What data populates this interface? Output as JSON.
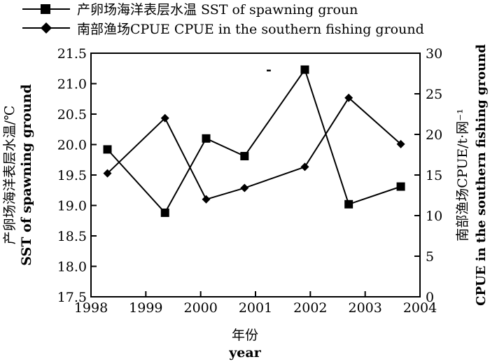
{
  "chart_data": {
    "type": "line",
    "x": [
      1998.3,
      1999.35,
      2000.1,
      2000.8,
      2001.9,
      2002.7,
      2003.65
    ],
    "xlim": [
      1998,
      2004
    ],
    "xticks": [
      "1998",
      "1999",
      "2000",
      "2001",
      "2002",
      "2003",
      "2004"
    ],
    "xlabel": [
      "年份",
      "year"
    ],
    "ylabel_left": [
      "产卵场海洋表层水温/℃",
      "SST of spawning ground"
    ],
    "ylabel_right": [
      "南部渔场CPUE/t·网⁻¹",
      "CPUE in the southern fishing ground"
    ],
    "ylim_left": [
      17.5,
      21.5
    ],
    "yticks_left": [
      "17.5",
      "18.0",
      "18.5",
      "19.0",
      "19.5",
      "20.0",
      "20.5",
      "21.0",
      "21.5"
    ],
    "ylim_right": [
      0,
      30
    ],
    "yticks_right": [
      "0",
      "5",
      "10",
      "15",
      "20",
      "25",
      "30"
    ],
    "series": [
      {
        "name": "产卵场海洋表层水温  SST of spawning groun",
        "axis": "left",
        "marker": "square",
        "values": [
          19.92,
          18.88,
          20.1,
          19.81,
          21.23,
          19.02,
          19.31
        ]
      },
      {
        "name": "南部渔场CPUE   CPUE in the southern fishing ground",
        "axis": "right",
        "marker": "diamond",
        "values": [
          15.2,
          22.0,
          12.0,
          13.4,
          16.0,
          24.5,
          18.8
        ]
      }
    ],
    "annotations": [
      "-"
    ],
    "legend": "top",
    "grid": false
  }
}
